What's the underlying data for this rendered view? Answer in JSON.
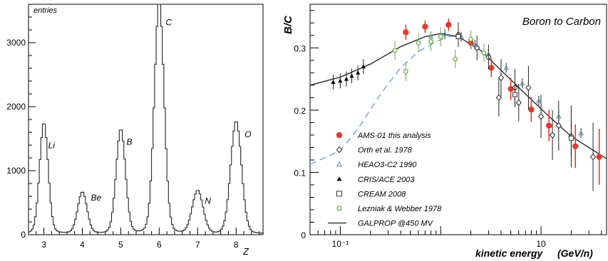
{
  "chart_data": [
    {
      "type": "line",
      "xlabel": "Z",
      "ylabel": "entries",
      "xlim": [
        2.6,
        8.7
      ],
      "ylim": [
        0,
        3600
      ],
      "x_ticks": [
        "3",
        "4",
        "5",
        "6",
        "7",
        "8"
      ],
      "y_ticks": [
        "0",
        "1000",
        "2000",
        "3000"
      ],
      "peaks": [
        {
          "label": "Li",
          "z": 3,
          "height": 1660,
          "sigma": 0.11
        },
        {
          "label": "Be",
          "z": 4,
          "height": 620,
          "sigma": 0.12
        },
        {
          "label": "B",
          "z": 5,
          "height": 1560,
          "sigma": 0.12
        },
        {
          "label": "C",
          "z": 6,
          "height": 3470,
          "sigma": 0.125
        },
        {
          "label": "N",
          "z": 7,
          "height": 640,
          "sigma": 0.14
        },
        {
          "label": "O",
          "z": 8,
          "height": 1680,
          "sigma": 0.14
        }
      ]
    },
    {
      "type": "scatter",
      "title": "Boron to Carbon",
      "xlabel": "kinetic energy",
      "xunit": "(GeV/n)",
      "ylabel": "B/C",
      "x_scale": "log",
      "xlim": [
        0.05,
        45
      ],
      "ylim": [
        0,
        0.37
      ],
      "x_ticks": [
        {
          "value": 0.1,
          "label": "10⁻¹"
        },
        {
          "value": 10,
          "label": "10"
        }
      ],
      "y_ticks": [
        "0",
        "0.1",
        "0.2",
        "0.3"
      ],
      "series": [
        {
          "name": "AMS-01 this analysis",
          "marker": "circle",
          "color": "#e03a2f",
          "points": [
            [
              0.45,
              0.325,
              0.012
            ],
            [
              0.7,
              0.334,
              0.01
            ],
            [
              1.2,
              0.337,
              0.01
            ],
            [
              2.0,
              0.308,
              0.01
            ],
            [
              3.2,
              0.268,
              0.015
            ],
            [
              5.0,
              0.234,
              0.018
            ],
            [
              8.0,
              0.201,
              0.02
            ],
            [
              12.0,
              0.175,
              0.025
            ],
            [
              22.0,
              0.142,
              0.035
            ],
            [
              38.0,
              0.125,
              0.045
            ]
          ]
        },
        {
          "name": "Orth et al. 1978",
          "marker": "diamond",
          "color": "#222222",
          "points": [
            [
              1.5,
              0.321,
              0.02
            ],
            [
              2.3,
              0.3,
              0.02
            ],
            [
              3.0,
              0.285,
              0.02
            ],
            [
              4.0,
              0.252,
              0.03
            ],
            [
              5.5,
              0.236,
              0.03
            ],
            [
              7.5,
              0.236,
              0.035
            ],
            [
              10.0,
              0.19,
              0.035
            ],
            [
              15.0,
              0.175,
              0.04
            ],
            [
              20.0,
              0.158,
              0.05
            ],
            [
              33.0,
              0.125,
              0.055
            ],
            [
              3.8,
              0.22,
              0.03
            ],
            [
              6.0,
              0.212,
              0.03
            ],
            [
              13.0,
              0.16,
              0.04
            ]
          ]
        },
        {
          "name": "HEAO3-C2 1990",
          "marker": "triangle",
          "color": "#5a8fb0",
          "points": [
            [
              0.8,
              0.318,
              0.008
            ],
            [
              1.1,
              0.322,
              0.008
            ],
            [
              1.6,
              0.318,
              0.008
            ],
            [
              2.2,
              0.305,
              0.008
            ],
            [
              3.0,
              0.29,
              0.008
            ],
            [
              4.5,
              0.268,
              0.008
            ],
            [
              6.5,
              0.243,
              0.008
            ],
            [
              9.5,
              0.215,
              0.008
            ],
            [
              15.0,
              0.19,
              0.008
            ],
            [
              25.0,
              0.163,
              0.008
            ]
          ]
        },
        {
          "name": "CRIS/ACE 2003",
          "marker": "triangle-filled",
          "color": "#000000",
          "points": [
            [
              0.085,
              0.245,
              0.012
            ],
            [
              0.1,
              0.247,
              0.012
            ],
            [
              0.115,
              0.25,
              0.012
            ],
            [
              0.13,
              0.255,
              0.012
            ],
            [
              0.15,
              0.26,
              0.012
            ],
            [
              0.17,
              0.27,
              0.012
            ]
          ]
        },
        {
          "name": "CREAM 2008",
          "marker": "square",
          "color": "#333333",
          "points": [
            [
              1.5,
              0.318,
              0.015
            ],
            [
              5.5,
              0.225,
              0.02
            ],
            [
              20.0,
              0.155,
              0.03
            ]
          ]
        },
        {
          "name": "Lezniak & Webber 1978",
          "marker": "circle-open",
          "color": "#6aa84f",
          "points": [
            [
              0.35,
              0.296,
              0.015
            ],
            [
              0.45,
              0.262,
              0.015
            ],
            [
              0.6,
              0.308,
              0.015
            ],
            [
              0.8,
              0.31,
              0.015
            ],
            [
              1.0,
              0.318,
              0.015
            ],
            [
              1.4,
              0.282,
              0.015
            ],
            [
              2.0,
              0.314,
              0.015
            ],
            [
              2.7,
              0.292,
              0.015
            ]
          ]
        },
        {
          "name": "GALPROP @450 MV",
          "marker": "line",
          "color": "#2b2b2b",
          "points": [
            [
              0.05,
              0.24
            ],
            [
              0.1,
              0.253
            ],
            [
              0.2,
              0.274
            ],
            [
              0.4,
              0.302
            ],
            [
              0.7,
              0.318
            ],
            [
              1.0,
              0.323
            ],
            [
              1.5,
              0.318
            ],
            [
              2.5,
              0.296
            ],
            [
              4.0,
              0.264
            ],
            [
              7.0,
              0.226
            ],
            [
              12.0,
              0.19
            ],
            [
              20.0,
              0.158
            ],
            [
              45.0,
              0.122
            ]
          ]
        }
      ],
      "dashed_curve": {
        "color": "#8aa9d6",
        "points": [
          [
            0.05,
            0.113
          ],
          [
            0.1,
            0.135
          ],
          [
            0.15,
            0.17
          ],
          [
            0.25,
            0.225
          ],
          [
            0.4,
            0.268
          ],
          [
            0.6,
            0.294
          ],
          [
            0.9,
            0.31
          ],
          [
            1.2,
            0.318
          ],
          [
            1.6,
            0.32
          ]
        ]
      }
    }
  ]
}
